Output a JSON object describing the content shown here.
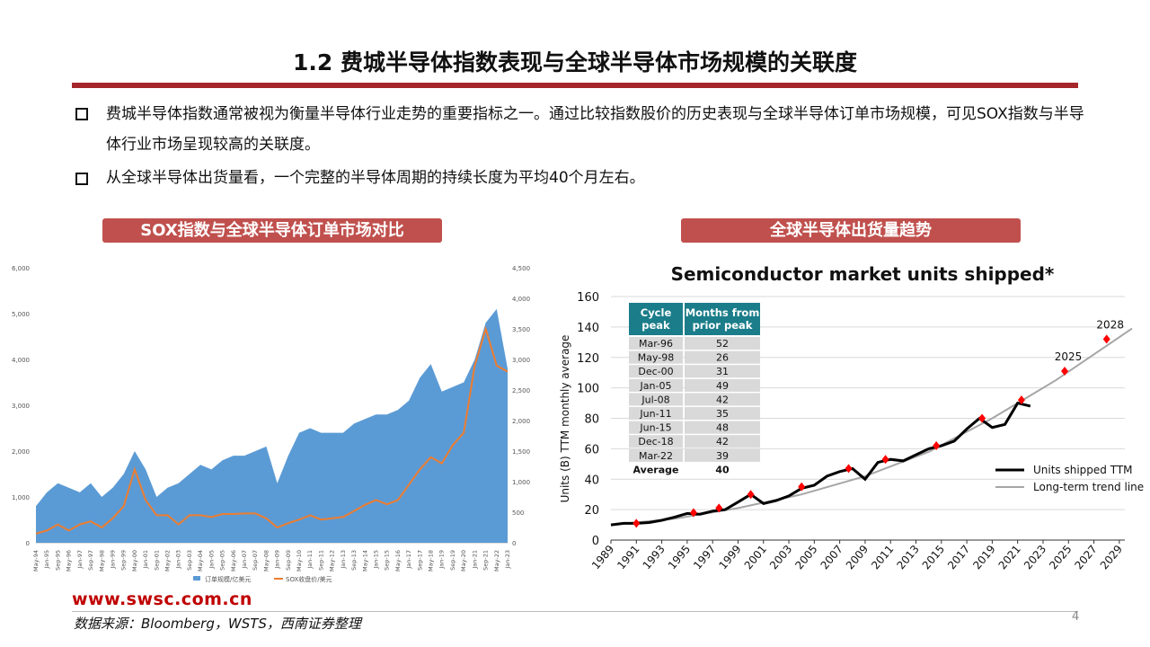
{
  "header": {
    "title": "1.2 费城半导体指数表现与全球半导体市场规模的关联度"
  },
  "bullets": [
    "费城半导体指数通常被视为衡量半导体行业走势的重要指标之一。通过比较指数股价的历史表现与全球半导体订单市场规模，可见SOX指数与半导体行业市场呈现较高的关联度。",
    "从全球半导体出货量看，一个完整的半导体周期的持续长度为平均40个月左右。"
  ],
  "panels": [
    "SOX指数与全球半导体订单市场对比",
    "全球半导体出货量趋势"
  ],
  "chart_data": [
    {
      "type": "area-line",
      "categories": [
        "May-94",
        "Jan-95",
        "Sep-95",
        "May-96",
        "Jan-97",
        "Sep-97",
        "May-98",
        "Jan-99",
        "Sep-99",
        "May-00",
        "Jan-01",
        "Sep-01",
        "May-02",
        "Jan-03",
        "Sep-03",
        "May-04",
        "Jan-05",
        "Sep-05",
        "May-06",
        "Jan-07",
        "Sep-07",
        "May-08",
        "Jan-09",
        "Sep-09",
        "May-10",
        "Jan-11",
        "Sep-11",
        "May-12",
        "Jan-13",
        "Sep-13",
        "May-14",
        "Jan-15",
        "Sep-15",
        "May-16",
        "Jan-17",
        "Sep-17",
        "May-18",
        "Jan-19",
        "Sep-19",
        "May-20",
        "Jan-21",
        "Sep-21",
        "May-22",
        "Jan-23"
      ],
      "series": [
        {
          "name": "订单规模/亿美元",
          "color": "#5b9bd5",
          "kind": "area",
          "values": [
            800,
            1100,
            1300,
            1200,
            1100,
            1300,
            1000,
            1200,
            1500,
            2000,
            1600,
            1000,
            1200,
            1300,
            1500,
            1700,
            1600,
            1800,
            1900,
            1900,
            2000,
            2100,
            1300,
            1900,
            2400,
            2500,
            2400,
            2400,
            2400,
            2600,
            2700,
            2800,
            2800,
            2900,
            3100,
            3600,
            3900,
            3300,
            3400,
            3500,
            4000,
            4800,
            5100,
            3800
          ]
        },
        {
          "name": "SOX收盘价/美元",
          "color": "#ed7d31",
          "kind": "line",
          "axis": "y2",
          "values": [
            150,
            200,
            300,
            200,
            300,
            350,
            250,
            400,
            600,
            1200,
            700,
            450,
            450,
            300,
            450,
            450,
            420,
            470,
            470,
            480,
            480,
            400,
            250,
            320,
            380,
            450,
            380,
            400,
            420,
            520,
            620,
            700,
            630,
            700,
            950,
            1200,
            1400,
            1300,
            1600,
            1800,
            2900,
            3500,
            2900,
            2800
          ]
        }
      ],
      "ylim": [
        0,
        6000
      ],
      "yticks": [
        0,
        {
          "value": 1000,
          "label": "1,000"
        },
        {
          "value": 2000,
          "label": "2,000"
        },
        {
          "value": 3000,
          "label": "3,000"
        },
        {
          "value": 4000,
          "label": "4,000"
        },
        {
          "value": 5000,
          "label": "5,000"
        },
        {
          "value": 6000,
          "label": "6,000"
        }
      ],
      "y2lim": [
        0,
        4500
      ],
      "y2ticks": [
        0,
        500,
        {
          "value": 1000,
          "label": "1,000"
        },
        {
          "value": 1500,
          "label": "1,500"
        },
        {
          "value": 2000,
          "label": "2,000"
        },
        {
          "value": 2500,
          "label": "2,500"
        },
        {
          "value": 3000,
          "label": "3,000"
        },
        {
          "value": 3500,
          "label": "3,500"
        },
        {
          "value": 4000,
          "label": "4,000"
        },
        {
          "value": 4500,
          "label": "4,500"
        }
      ]
    },
    {
      "type": "line",
      "title": "Semiconductor market units shipped*",
      "y_label": "Units (B) TTM monthly average",
      "series": [
        {
          "name": "Units shipped TTM",
          "color": "#000000",
          "width": 3,
          "x": [
            1989,
            1990,
            1991,
            1992,
            1993,
            1994,
            1995,
            1996,
            1997,
            1998,
            1999,
            2000,
            2001,
            2002,
            2003,
            2004,
            2005,
            2006,
            2007,
            2008,
            2009,
            2010,
            2011,
            2012,
            2013,
            2014,
            2015,
            2016,
            2017,
            2018,
            2019,
            2020,
            2021,
            2022
          ],
          "values": [
            10,
            11,
            11,
            11.5,
            13,
            15,
            17.5,
            17,
            19,
            20,
            25,
            30,
            24,
            26,
            29,
            34,
            36,
            42,
            45,
            47,
            40,
            51,
            53,
            52,
            56,
            60,
            62,
            65,
            73,
            80,
            74,
            76,
            90,
            88
          ]
        },
        {
          "name": "Long-term trend line",
          "color": "#a6a6a6",
          "width": 2,
          "x": [
            1989,
            1994,
            1999,
            2004,
            2009,
            2014,
            2019,
            2024,
            2030
          ],
          "values": [
            10,
            14,
            21,
            30,
            42,
            58,
            80,
            105,
            139
          ]
        }
      ],
      "markers": {
        "color": "#ff0000",
        "x": [
          1991,
          1995.5,
          1997.5,
          2000,
          2004,
          2007.7,
          2010.6,
          2014.6,
          2018.2,
          2021.3,
          2024.7,
          2028
        ],
        "values": [
          11,
          18,
          21,
          30,
          35,
          47,
          53,
          62,
          80,
          92,
          111,
          132
        ]
      },
      "annotations": [
        {
          "text": "2025",
          "x": 2024.7,
          "y": 111
        },
        {
          "text": "2028",
          "x": 2028,
          "y": 132
        }
      ],
      "xlim": [
        1989,
        2030
      ],
      "xticks": [
        1989,
        1991,
        1993,
        1995,
        1997,
        1999,
        2001,
        2003,
        2005,
        2007,
        2009,
        2011,
        2013,
        2015,
        2017,
        2019,
        2021,
        2023,
        2025,
        2027,
        2029
      ],
      "ylim": [
        0,
        160
      ],
      "yticks": [
        0,
        20,
        40,
        60,
        80,
        100,
        120,
        140,
        160
      ],
      "table": {
        "header": [
          "Cycle peak",
          "Months from prior peak"
        ],
        "rows": [
          [
            "Mar-96",
            52
          ],
          [
            "May-98",
            26
          ],
          [
            "Dec-00",
            31
          ],
          [
            "Jan-05",
            49
          ],
          [
            "Jul-08",
            42
          ],
          [
            "Jun-11",
            35
          ],
          [
            "Jun-15",
            48
          ],
          [
            "Dec-18",
            42
          ],
          [
            "Mar-22",
            39
          ]
        ],
        "footer": [
          "Average",
          40
        ]
      }
    }
  ],
  "footer": {
    "website": "www.swsc.com.cn",
    "source": "数据来源：Bloomberg，WSTS，西南证券整理",
    "page": "4"
  }
}
